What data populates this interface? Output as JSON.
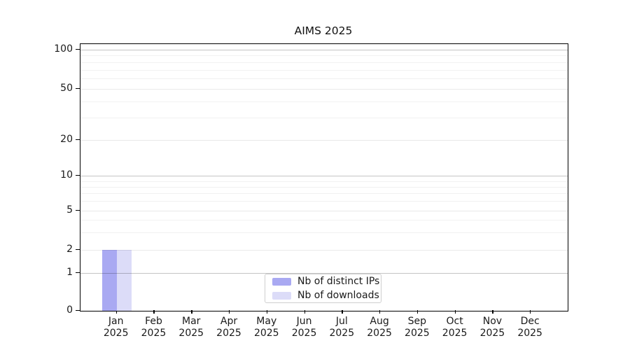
{
  "title": "AIMS 2025",
  "chart_data": {
    "type": "bar",
    "title": "AIMS 2025",
    "categories": [
      "Jan",
      "Feb",
      "Mar",
      "Apr",
      "May",
      "Jun",
      "Jul",
      "Aug",
      "Sep",
      "Oct",
      "Nov",
      "Dec"
    ],
    "category_year": "2025",
    "series": [
      {
        "name": "Nb of distinct IPs",
        "color": "#a9a9f2",
        "values": [
          2,
          0,
          0,
          0,
          0,
          0,
          0,
          0,
          0,
          0,
          0,
          0
        ]
      },
      {
        "name": "Nb of downloads",
        "color": "#dcdcf8",
        "values": [
          2,
          0,
          0,
          0,
          0,
          0,
          0,
          0,
          0,
          0,
          0,
          0
        ]
      }
    ],
    "y_axis": {
      "scale": "symlog",
      "ticks": [
        0,
        1,
        2,
        5,
        10,
        20,
        50,
        100
      ],
      "emphasized_gridline_ticks": [
        1,
        10,
        100
      ],
      "minor_gridlines": [
        3,
        4,
        6,
        7,
        8,
        9,
        30,
        40,
        60,
        70,
        80,
        90
      ]
    },
    "x_axis": {
      "tick_label_format": "month-over-year"
    },
    "legend": {
      "position": "lower center"
    },
    "grid": true,
    "colors": {
      "background": "#ffffff",
      "spine": "#000000",
      "grid_major": "#c4c4c4",
      "grid_minor": "#efefef",
      "text": "#1a1a1a",
      "legend_border": "#cfcfcf"
    }
  }
}
